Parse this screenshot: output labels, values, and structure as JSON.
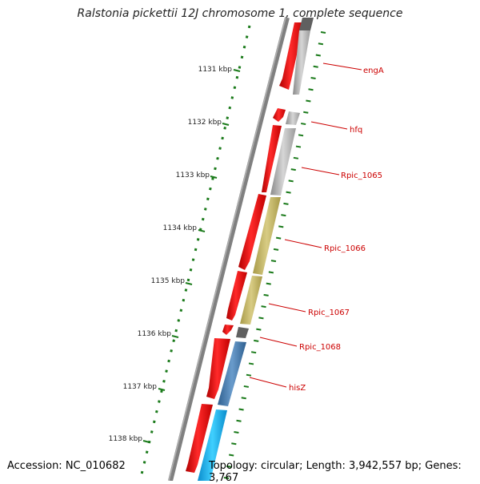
{
  "title": "Ralstonia pickettii 12J chromosome 1, complete sequence",
  "accession": "Accession: NC_010682",
  "topology": "Topology: circular; Length: 3,942,557 bp; Genes: 3,767",
  "scale_labels": [
    "1131 kbp",
    "1132 kbp",
    "1133 kbp",
    "1134 kbp",
    "1135 kbp",
    "1136 kbp",
    "1137 kbp",
    "1138 kbp"
  ],
  "gene_labels": [
    "engA",
    "hfq",
    "Rpic_1065",
    "Rpic_1066",
    "Rpic_1067",
    "Rpic_1068",
    "hisZ"
  ],
  "colors": {
    "backbone": "#808080",
    "cds": "#ff0000",
    "scale_ticks": "#1a7a1a",
    "labels": "#cc0000",
    "feature_gray": "#b8b8b8",
    "feature_dark": "#606060",
    "feature_khaki": "#c8bc6e",
    "feature_steelblue": "#4a7eb0",
    "feature_cyan": "#1ab0e8"
  }
}
